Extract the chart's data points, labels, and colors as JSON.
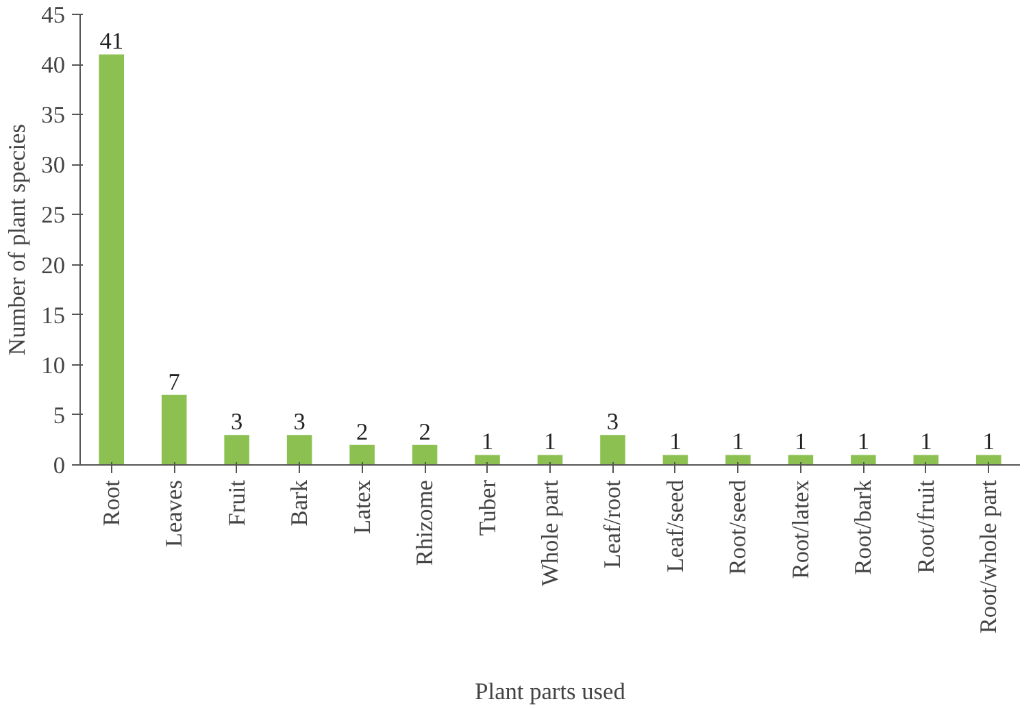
{
  "chart_data": {
    "type": "bar",
    "xlabel": "Plant parts used",
    "ylabel": "Number of plant species",
    "categories": [
      "Root",
      "Leaves",
      "Fruit",
      "Bark",
      "Latex",
      "Rhizome",
      "Tuber",
      "Whole part",
      "Leaf/root",
      "Leaf/seed",
      "Root/seed",
      "Root/latex",
      "Root/bark",
      "Root/fruit",
      "Root/whole part"
    ],
    "values": [
      41,
      7,
      3,
      3,
      2,
      2,
      1,
      1,
      3,
      1,
      1,
      1,
      1,
      1,
      1
    ],
    "color": "#8cc152",
    "ylim": [
      0,
      45
    ],
    "yticks": [
      0,
      5,
      10,
      15,
      20,
      25,
      30,
      35,
      40,
      45
    ],
    "grid": false,
    "data_labels": true
  }
}
